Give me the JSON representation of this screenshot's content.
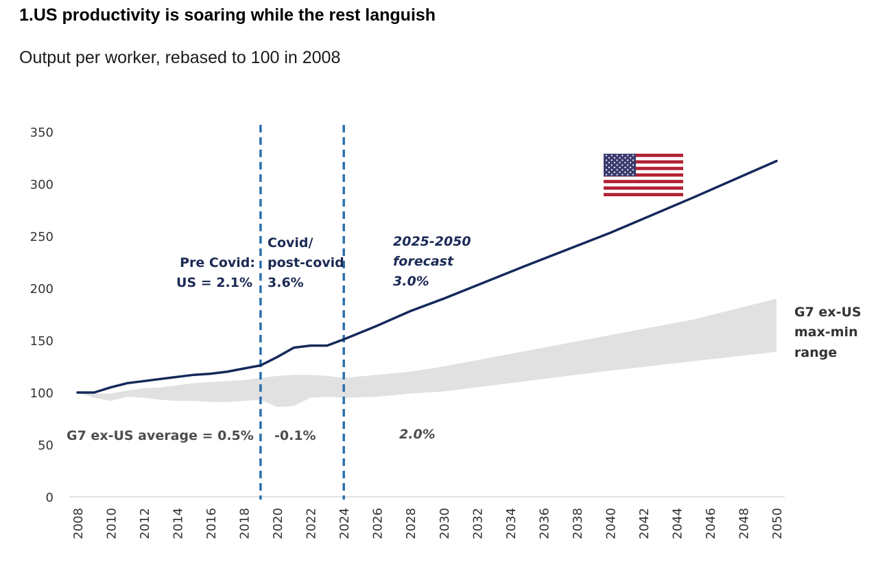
{
  "header": {
    "title": "1.US productivity is soaring while the rest languish",
    "subtitle": "Output per worker, rebased to 100 in 2008"
  },
  "colors": {
    "us_line": "#14285a",
    "range_fill": "#e1e1e1",
    "divider": "#2b70ad",
    "text_dark": "#1b2a55",
    "text_grey": "#4d4d4d"
  },
  "icon": "us-flag-icon",
  "chart_data": {
    "type": "line",
    "title": "",
    "xlabel": "",
    "ylabel": "",
    "xlim": [
      2008,
      2050
    ],
    "ylim": [
      0,
      350
    ],
    "yticks": [
      0,
      50,
      100,
      150,
      200,
      250,
      300,
      350
    ],
    "xticks": [
      2008,
      2010,
      2012,
      2014,
      2016,
      2018,
      2020,
      2022,
      2024,
      2026,
      2028,
      2030,
      2032,
      2034,
      2036,
      2038,
      2040,
      2042,
      2044,
      2046,
      2048,
      2050
    ],
    "grid": false,
    "series": [
      {
        "kind": "line",
        "x": [
          2008,
          2009,
          2010,
          2011,
          2012,
          2013,
          2014,
          2015,
          2016,
          2017,
          2018,
          2019,
          2020,
          2021,
          2022,
          2023,
          2024,
          2026,
          2028,
          2030,
          2035,
          2040,
          2045,
          2050
        ],
        "y": [
          100,
          100,
          105,
          109,
          111,
          113,
          115,
          117,
          118,
          120,
          123,
          126,
          134,
          143,
          145,
          145,
          151,
          164,
          178,
          190,
          222,
          253,
          287,
          322
        ]
      },
      {
        "kind": "range",
        "x": [
          2008,
          2009,
          2010,
          2011,
          2012,
          2013,
          2014,
          2015,
          2016,
          2017,
          2018,
          2019,
          2020,
          2021,
          2022,
          2023,
          2024,
          2026,
          2028,
          2030,
          2035,
          2040,
          2045,
          2050
        ],
        "upper": [
          100,
          99,
          99,
          102,
          104,
          105,
          107,
          109,
          110,
          111,
          112,
          114,
          116,
          117,
          117,
          116,
          114,
          117,
          120,
          125,
          140,
          155,
          170,
          190
        ],
        "lower": [
          100,
          95,
          92,
          96,
          95,
          93,
          92,
          92,
          91,
          91,
          92,
          93,
          86,
          87,
          95,
          96,
          95,
          96,
          99,
          101,
          111,
          121,
          130,
          139
        ]
      }
    ],
    "vlines": [
      2019,
      2024
    ],
    "annotations": {
      "pre_covid": [
        "Pre Covid:",
        "US = 2.1%"
      ],
      "covid": [
        "Covid/",
        "post-covid",
        "3.6%"
      ],
      "forecast": [
        "2025-2050",
        "forecast",
        "3.0%"
      ],
      "g7_avg": "G7 ex-US average = 0.5%",
      "g7_covid": "-0.1%",
      "g7_forecast": "2.0%",
      "range_label": [
        "G7 ex-US",
        "max-min",
        "range"
      ]
    }
  }
}
